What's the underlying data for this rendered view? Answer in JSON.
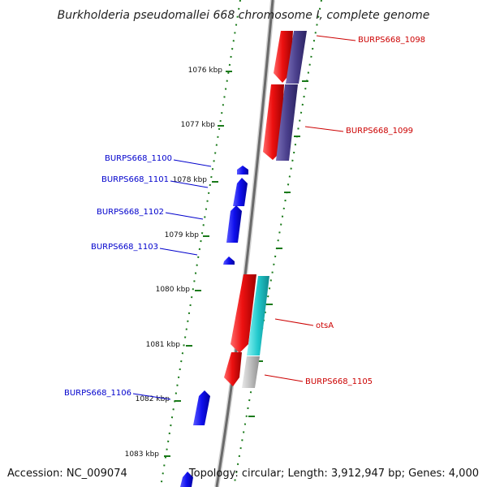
{
  "title": "Burkholderia pseudomallei 668 chromosome I, complete genome",
  "footer": {
    "accession": "Accession: NC_009074",
    "topology": "Topology: circular; Length: 3,912,947 bp; Genes: 4,000"
  },
  "kbp_labels": [
    "1076 kbp",
    "1077 kbp",
    "1078 kbp",
    "1079 kbp",
    "1080 kbp",
    "1081 kbp",
    "1082 kbp",
    "1083 kbp"
  ],
  "gene_labels": {
    "outer": [
      "BURPS668_1098",
      "BURPS668_1099",
      "otsA",
      "BURPS668_1105"
    ],
    "inner": [
      "BURPS668_1100",
      "BURPS668_1101",
      "BURPS668_1102",
      "BURPS668_1103",
      "BURPS668_1106"
    ]
  },
  "colors": {
    "forward_cds": "#ee1111",
    "reverse_cds": "#1010ee",
    "outer_track_a": "#4a3f8c",
    "outer_track_b": "#20c8cc",
    "outer_track_c": "#bdbdbd",
    "backbone": "#777777",
    "ticks": "#1a7a1a",
    "outer_label": "#cc0000",
    "inner_label": "#0000cc"
  }
}
